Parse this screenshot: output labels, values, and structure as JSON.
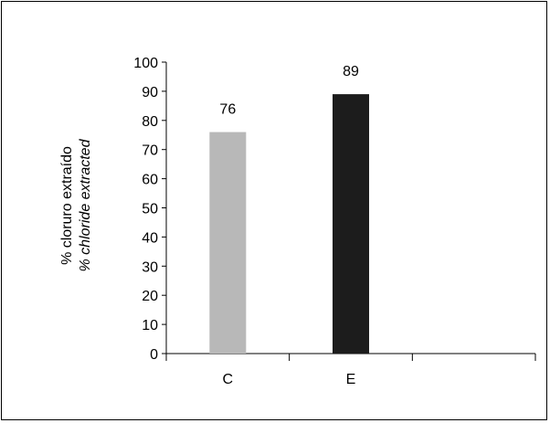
{
  "chart_data": {
    "type": "bar",
    "categories": [
      "C",
      "E",
      ""
    ],
    "values": [
      76,
      89,
      null
    ],
    "data_labels": [
      "76",
      "89",
      ""
    ],
    "bar_colors": [
      "#b8b8b8",
      "#1c1c1c",
      "#ffffff"
    ],
    "ylabel": "% cloruro extraído",
    "ylabel_en": "% chloride extracted",
    "ylim": [
      0,
      100
    ],
    "yticks": [
      0,
      10,
      20,
      30,
      40,
      50,
      60,
      70,
      80,
      90,
      100
    ],
    "grid": false,
    "legend": "none"
  }
}
